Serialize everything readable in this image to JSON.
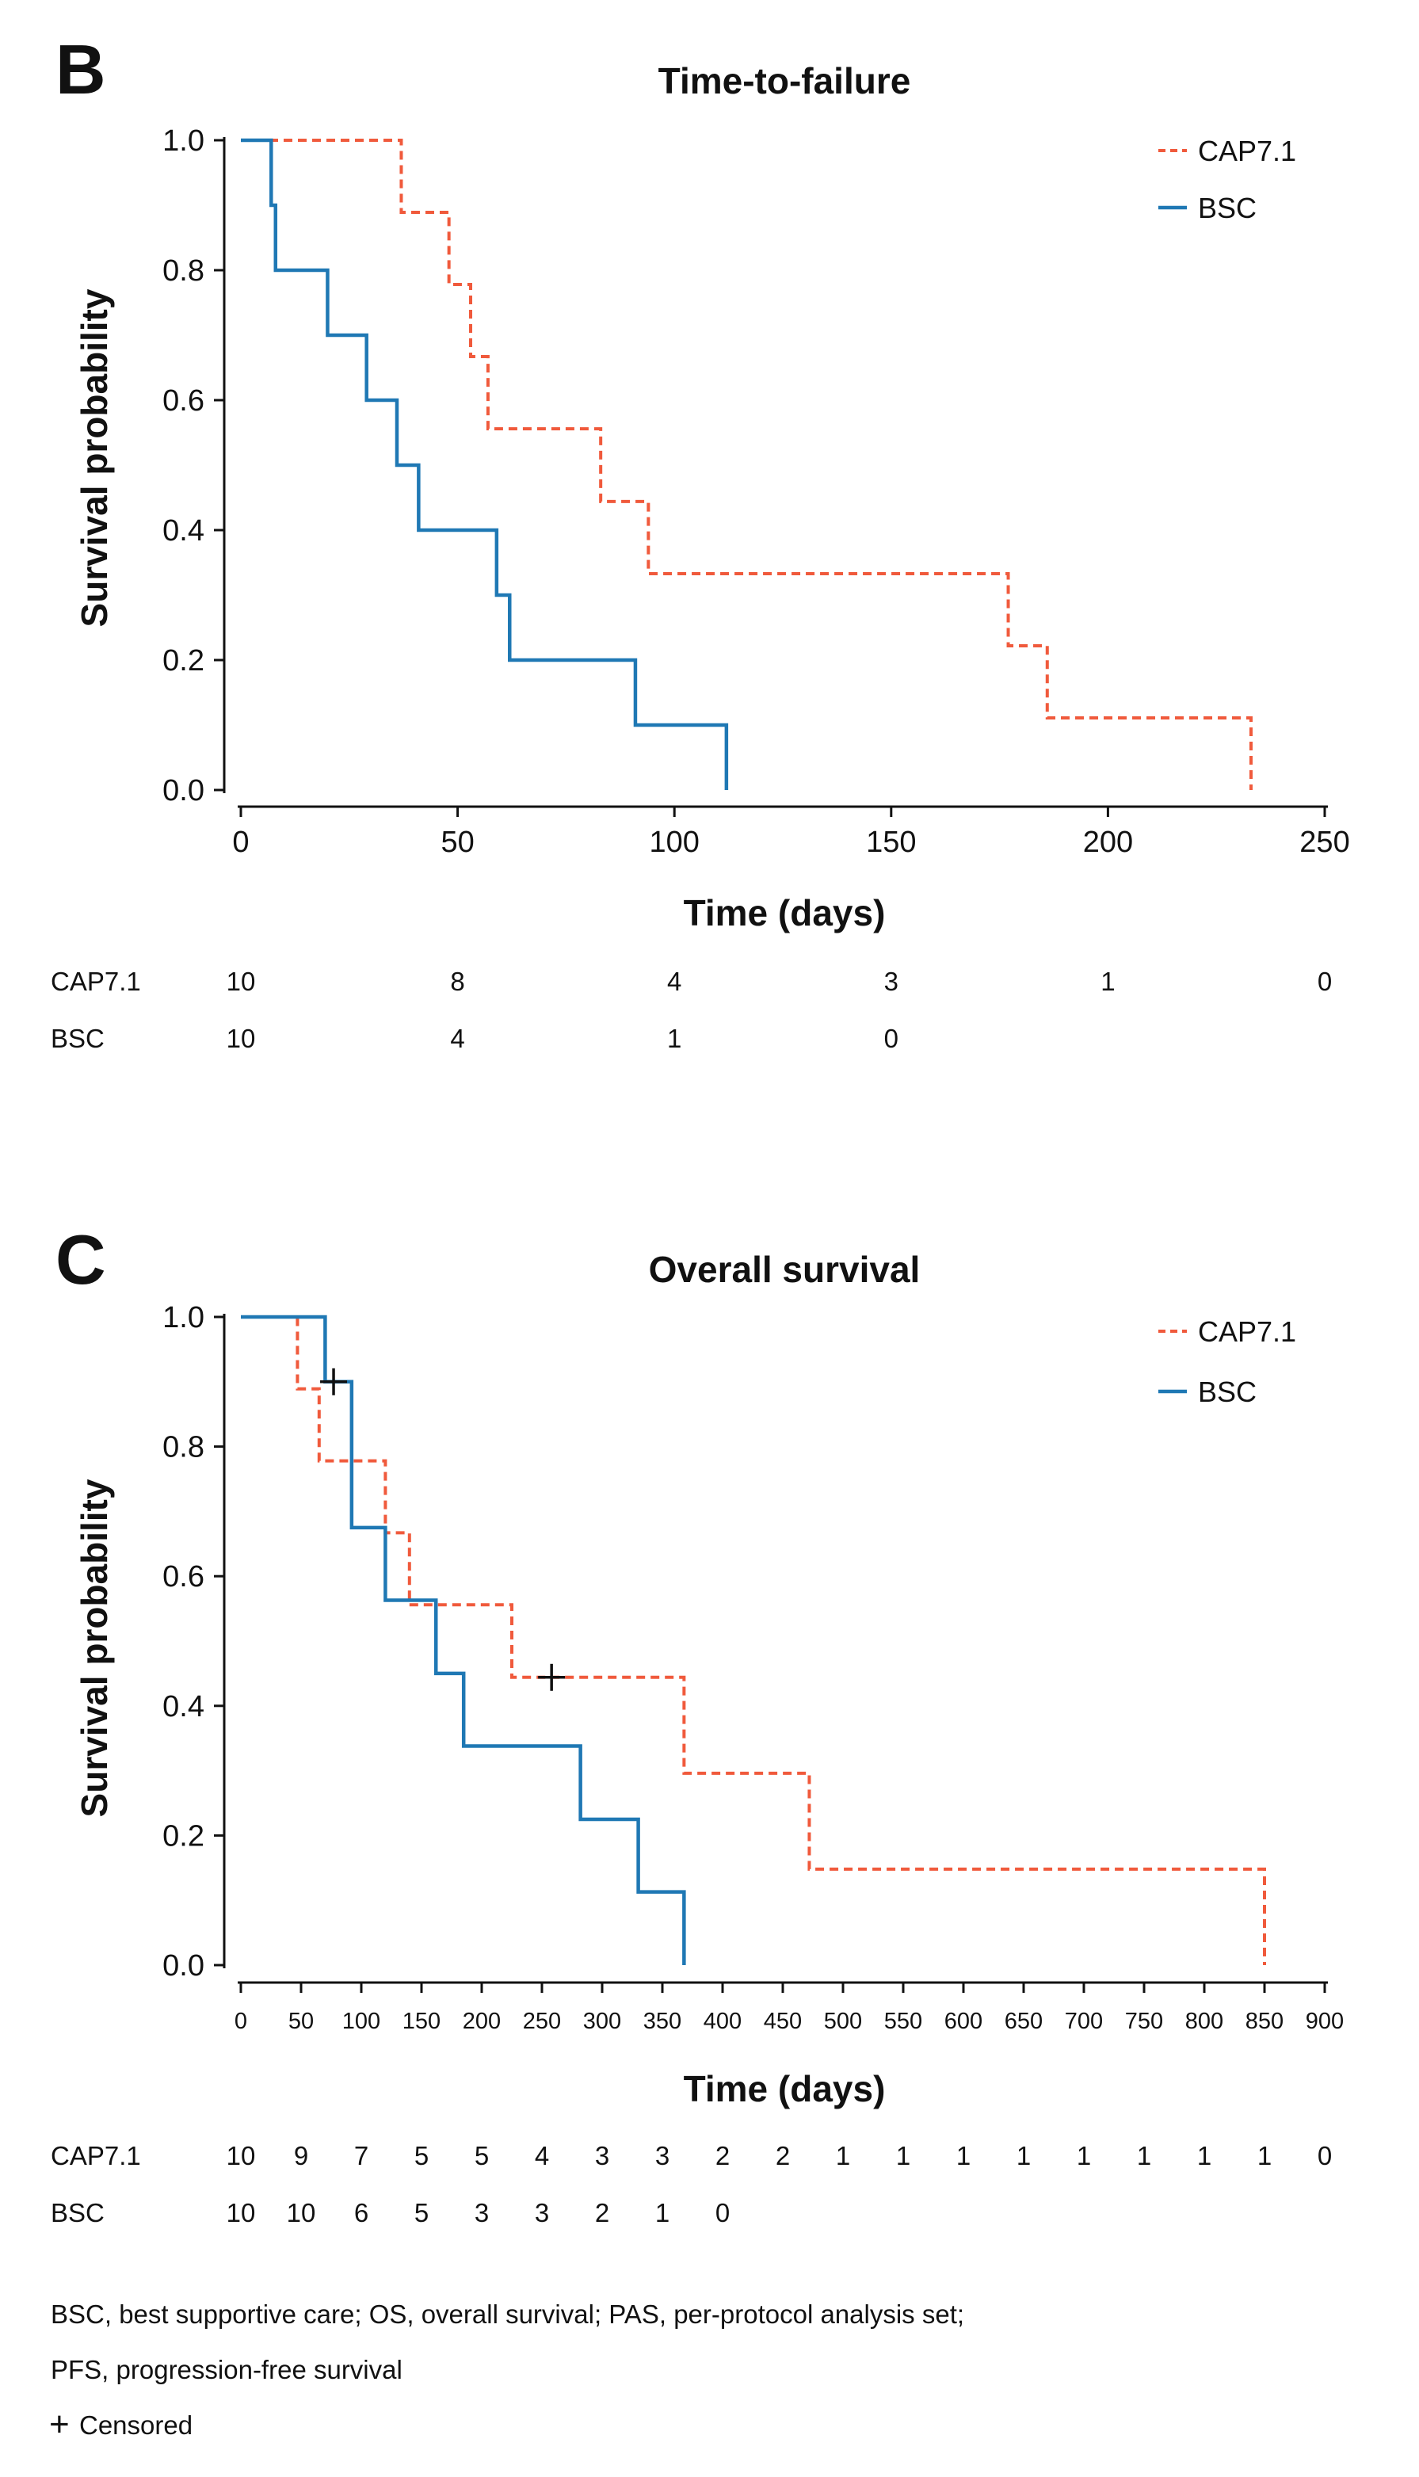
{
  "colors": {
    "cap": "#f05a3c",
    "bsc": "#1f78b4",
    "axis": "#111111"
  },
  "chart_data": [
    {
      "type": "line",
      "panel_label": "B",
      "title": "Time-to-failure",
      "xlabel": "Time (days)",
      "ylabel": "Survival probability",
      "xlim": [
        0,
        250
      ],
      "ylim": [
        0,
        1
      ],
      "x_ticks": [
        0,
        50,
        100,
        150,
        200,
        250
      ],
      "x_tick_labels": [
        "0",
        "50",
        "100",
        "150",
        "200",
        "250"
      ],
      "y_ticks": [
        0,
        0.2,
        0.4,
        0.6,
        0.8,
        1.0
      ],
      "y_tick_labels": [
        "0.0",
        "0.2",
        "0.4",
        "0.6",
        "0.8",
        "1.0"
      ],
      "series": [
        {
          "name": "CAP7.1",
          "style": "dashed",
          "x": [
            0,
            37,
            48,
            53,
            57,
            83,
            94,
            177,
            186,
            233
          ],
          "y": [
            1.0,
            0.889,
            0.778,
            0.667,
            0.556,
            0.444,
            0.333,
            0.222,
            0.111,
            0.0
          ]
        },
        {
          "name": "BSC",
          "style": "solid",
          "x": [
            0,
            7,
            8,
            20,
            29,
            36,
            41,
            59,
            62,
            91,
            112
          ],
          "y": [
            1.0,
            0.9,
            0.8,
            0.7,
            0.6,
            0.5,
            0.4,
            0.3,
            0.2,
            0.1,
            0.0
          ]
        }
      ],
      "censored": [],
      "legend": [
        "CAP7.1",
        "BSC"
      ],
      "risk_table": {
        "times": [
          0,
          50,
          100,
          150,
          200,
          250
        ],
        "rows": [
          {
            "name": "CAP7.1",
            "values": [
              "10",
              "8",
              "4",
              "3",
              "1",
              "0"
            ]
          },
          {
            "name": "BSC",
            "values": [
              "10",
              "4",
              "1",
              "0"
            ]
          }
        ]
      }
    },
    {
      "type": "line",
      "panel_label": "C",
      "title": "Overall survival",
      "xlabel": "Time (days)",
      "ylabel": "Survival probability",
      "xlim": [
        0,
        900
      ],
      "ylim": [
        0,
        1
      ],
      "x_ticks": [
        0,
        50,
        100,
        150,
        200,
        250,
        300,
        350,
        400,
        450,
        500,
        550,
        600,
        650,
        700,
        750,
        800,
        850,
        900
      ],
      "x_tick_labels": [
        "0",
        "50",
        "100",
        "150",
        "200",
        "250",
        "300",
        "350",
        "400",
        "450",
        "500",
        "550",
        "600",
        "650",
        "700",
        "750",
        "800",
        "850",
        "900"
      ],
      "y_ticks": [
        0,
        0.2,
        0.4,
        0.6,
        0.8,
        1.0
      ],
      "y_tick_labels": [
        "0.0",
        "0.2",
        "0.4",
        "0.6",
        "0.8",
        "1.0"
      ],
      "series": [
        {
          "name": "CAP7.1",
          "style": "dashed",
          "x": [
            0,
            47,
            65,
            120,
            140,
            225,
            368,
            472,
            850
          ],
          "y": [
            1.0,
            0.889,
            0.778,
            0.667,
            0.556,
            0.444,
            0.296,
            0.148,
            0.0
          ]
        },
        {
          "name": "BSC",
          "style": "solid",
          "x": [
            0,
            70,
            92,
            120,
            162,
            185,
            282,
            330,
            368
          ],
          "y": [
            1.0,
            0.9,
            0.675,
            0.563,
            0.45,
            0.338,
            0.225,
            0.113,
            0.0
          ]
        }
      ],
      "censored": [
        {
          "series": "BSC",
          "x": 77,
          "y": 0.9
        },
        {
          "series": "CAP7.1",
          "x": 258,
          "y": 0.444
        }
      ],
      "legend": [
        "CAP7.1",
        "BSC"
      ],
      "risk_table": {
        "times": [
          0,
          50,
          100,
          150,
          200,
          250,
          300,
          350,
          400,
          450,
          500,
          550,
          600,
          650,
          700,
          750,
          800,
          850,
          900
        ],
        "rows": [
          {
            "name": "CAP7.1",
            "values": [
              "10",
              "9",
              "7",
              "5",
              "5",
              "4",
              "3",
              "3",
              "2",
              "2",
              "1",
              "1",
              "1",
              "1",
              "1",
              "1",
              "1",
              "1",
              "0"
            ]
          },
          {
            "name": "BSC",
            "values": [
              "10",
              "10",
              "6",
              "5",
              "3",
              "3",
              "2",
              "1",
              "0"
            ]
          }
        ]
      }
    }
  ],
  "footnote": {
    "line1": "BSC, best supportive care; OS, overall survival; PAS, per-protocol analysis set;",
    "line2": "PFS, progression-free survival",
    "censored_symbol": "+",
    "censored_label": "Censored"
  }
}
